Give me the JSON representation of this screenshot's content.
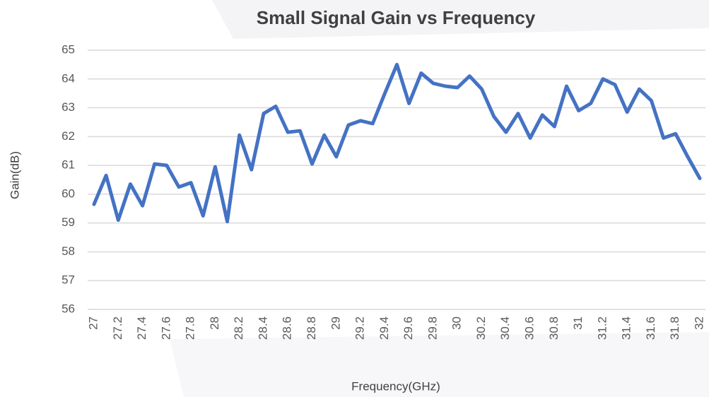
{
  "chart_data": {
    "type": "line",
    "title": "Small Signal Gain vs Frequency",
    "x_label": "Frequency(GHz)",
    "y_label": "Gain(dB)",
    "categories": [
      "27",
      null,
      "27.2",
      null,
      "27.4",
      null,
      "27.6",
      null,
      "27.8",
      null,
      "28",
      null,
      "28.2",
      null,
      "28.4",
      null,
      "28.6",
      null,
      "28.8",
      null,
      "29",
      null,
      "29.2",
      null,
      "29.4",
      null,
      "29.6",
      null,
      "29.8",
      null,
      "30",
      null,
      "30.2",
      null,
      "30.4",
      null,
      "30.6",
      null,
      "30.8",
      null,
      "31",
      null,
      "31.2",
      null,
      "31.4",
      null,
      "31.6",
      null,
      "31.8",
      null,
      "32"
    ],
    "series": [
      {
        "name": "Gain",
        "color": "#4472c4",
        "values": [
          59.65,
          60.65,
          59.1,
          60.35,
          59.6,
          61.05,
          61.0,
          60.25,
          60.4,
          59.25,
          60.95,
          59.05,
          62.05,
          60.85,
          62.8,
          63.05,
          62.15,
          62.2,
          61.05,
          62.05,
          61.3,
          62.4,
          62.55,
          62.45,
          63.5,
          64.5,
          63.15,
          64.2,
          63.85,
          63.75,
          63.7,
          64.1,
          63.65,
          62.7,
          62.15,
          62.8,
          61.95,
          62.75,
          62.35,
          63.75,
          62.9,
          63.15,
          64.0,
          63.8,
          62.85,
          63.65,
          63.25,
          61.95,
          62.1,
          61.3,
          60.55
        ]
      }
    ],
    "ylim": [
      56,
      65
    ],
    "yticks": [
      56,
      57,
      58,
      59,
      60,
      61,
      62,
      63,
      64,
      65
    ],
    "grid": true
  }
}
